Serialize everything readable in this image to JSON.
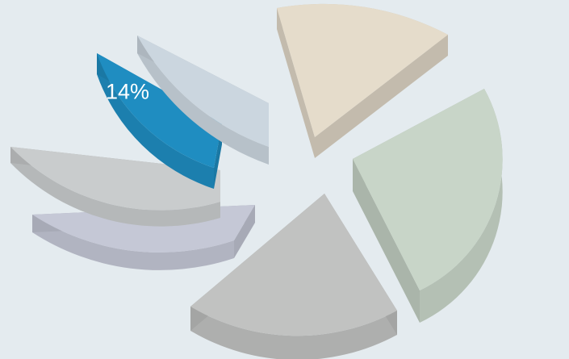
{
  "chart_data": {
    "type": "pie",
    "style": "3d-exploded",
    "slices": [
      {
        "color": "#c8d5c8",
        "value": null
      },
      {
        "color": "#c1c2c1",
        "value": null
      },
      {
        "color": "#c5c8d6",
        "value": null
      },
      {
        "color": "#c9cccd",
        "value": null
      },
      {
        "color": "#1f8dc1",
        "value": 14,
        "label": "14%"
      },
      {
        "color": "#cbd6df",
        "value": null
      },
      {
        "color": "#e5dccb",
        "value": null
      }
    ]
  }
}
